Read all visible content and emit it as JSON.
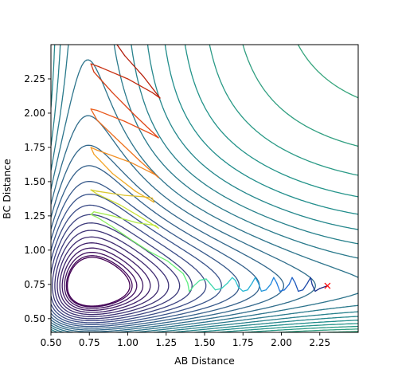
{
  "chart_data": {
    "type": "contour",
    "title": "",
    "xlabel": "AB Distance",
    "ylabel": "BC Distance",
    "xlim": [
      0.5,
      2.5
    ],
    "ylim": [
      0.4,
      2.5
    ],
    "x_ticks": [
      0.5,
      0.75,
      1.0,
      1.25,
      1.5,
      1.75,
      2.0,
      2.25
    ],
    "x_tick_labels": [
      "0.50",
      "0.75",
      "1.00",
      "1.25",
      "1.50",
      "1.75",
      "2.00",
      "2.25"
    ],
    "y_ticks": [
      0.5,
      0.75,
      1.0,
      1.25,
      1.5,
      1.75,
      2.0,
      2.25
    ],
    "y_tick_labels": [
      "0.50",
      "0.75",
      "1.00",
      "1.25",
      "1.50",
      "1.75",
      "2.00",
      "2.25"
    ],
    "grid": false,
    "colormap": "viridis",
    "colormap_stops": [
      "#440154",
      "#3b528b",
      "#21918c",
      "#5ec962",
      "#fde725"
    ],
    "contour_level_count": 40,
    "surface": {
      "valley_floor_bc": 0.74,
      "valley_floor_ab": 0.74,
      "transition_state_ab": 1.4,
      "transition_state_bc": 0.74
    },
    "trajectory": {
      "colormap": "turbo",
      "start": [
        2.3,
        0.74
      ],
      "start_marker": "x",
      "start_marker_color": "#ff0000",
      "points": [
        [
          2.3,
          0.74
        ],
        [
          2.25,
          0.72
        ],
        [
          2.22,
          0.7
        ],
        [
          2.2,
          0.75
        ],
        [
          2.19,
          0.8
        ],
        [
          2.17,
          0.76
        ],
        [
          2.14,
          0.71
        ],
        [
          2.11,
          0.7
        ],
        [
          2.09,
          0.76
        ],
        [
          2.07,
          0.8
        ],
        [
          2.05,
          0.75
        ],
        [
          2.02,
          0.71
        ],
        [
          1.99,
          0.7
        ],
        [
          1.97,
          0.76
        ],
        [
          1.95,
          0.8
        ],
        [
          1.93,
          0.75
        ],
        [
          1.9,
          0.71
        ],
        [
          1.87,
          0.7
        ],
        [
          1.85,
          0.76
        ],
        [
          1.83,
          0.8
        ],
        [
          1.81,
          0.76
        ],
        [
          1.78,
          0.71
        ],
        [
          1.75,
          0.7
        ],
        [
          1.72,
          0.73
        ],
        [
          1.7,
          0.78
        ],
        [
          1.68,
          0.8
        ],
        [
          1.65,
          0.76
        ],
        [
          1.61,
          0.72
        ],
        [
          1.57,
          0.71
        ],
        [
          1.54,
          0.75
        ],
        [
          1.51,
          0.79
        ],
        [
          1.47,
          0.78
        ],
        [
          1.43,
          0.74
        ],
        [
          1.41,
          0.71
        ],
        [
          1.4,
          0.7
        ],
        [
          1.39,
          0.76
        ],
        [
          1.36,
          0.83
        ],
        [
          1.26,
          0.92
        ],
        [
          1.14,
          0.99
        ],
        [
          1.03,
          1.07
        ],
        [
          0.9,
          1.17
        ],
        [
          0.8,
          1.24
        ],
        [
          0.76,
          1.26
        ],
        [
          0.78,
          1.28
        ],
        [
          0.9,
          1.25
        ],
        [
          1.06,
          1.2
        ],
        [
          1.18,
          1.18
        ],
        [
          1.2,
          1.16
        ],
        [
          1.1,
          1.23
        ],
        [
          0.95,
          1.33
        ],
        [
          0.8,
          1.41
        ],
        [
          0.76,
          1.44
        ],
        [
          0.8,
          1.43
        ],
        [
          0.98,
          1.4
        ],
        [
          1.1,
          1.39
        ],
        [
          1.16,
          1.38
        ],
        [
          1.17,
          1.35
        ],
        [
          1.05,
          1.43
        ],
        [
          0.9,
          1.56
        ],
        [
          0.78,
          1.7
        ],
        [
          0.76,
          1.75
        ],
        [
          0.8,
          1.73
        ],
        [
          1.02,
          1.64
        ],
        [
          1.18,
          1.55
        ],
        [
          1.2,
          1.53
        ],
        [
          1.08,
          1.65
        ],
        [
          0.92,
          1.82
        ],
        [
          0.8,
          1.95
        ],
        [
          0.76,
          2.03
        ],
        [
          0.8,
          2.02
        ],
        [
          0.98,
          1.94
        ],
        [
          1.15,
          1.85
        ],
        [
          1.2,
          1.82
        ],
        [
          1.05,
          1.98
        ],
        [
          0.9,
          2.15
        ],
        [
          0.78,
          2.3
        ],
        [
          0.76,
          2.36
        ],
        [
          0.81,
          2.34
        ],
        [
          1.0,
          2.25
        ],
        [
          1.16,
          2.15
        ],
        [
          1.21,
          2.11
        ],
        [
          1.1,
          2.27
        ],
        [
          0.98,
          2.42
        ],
        [
          0.93,
          2.5
        ]
      ]
    }
  }
}
